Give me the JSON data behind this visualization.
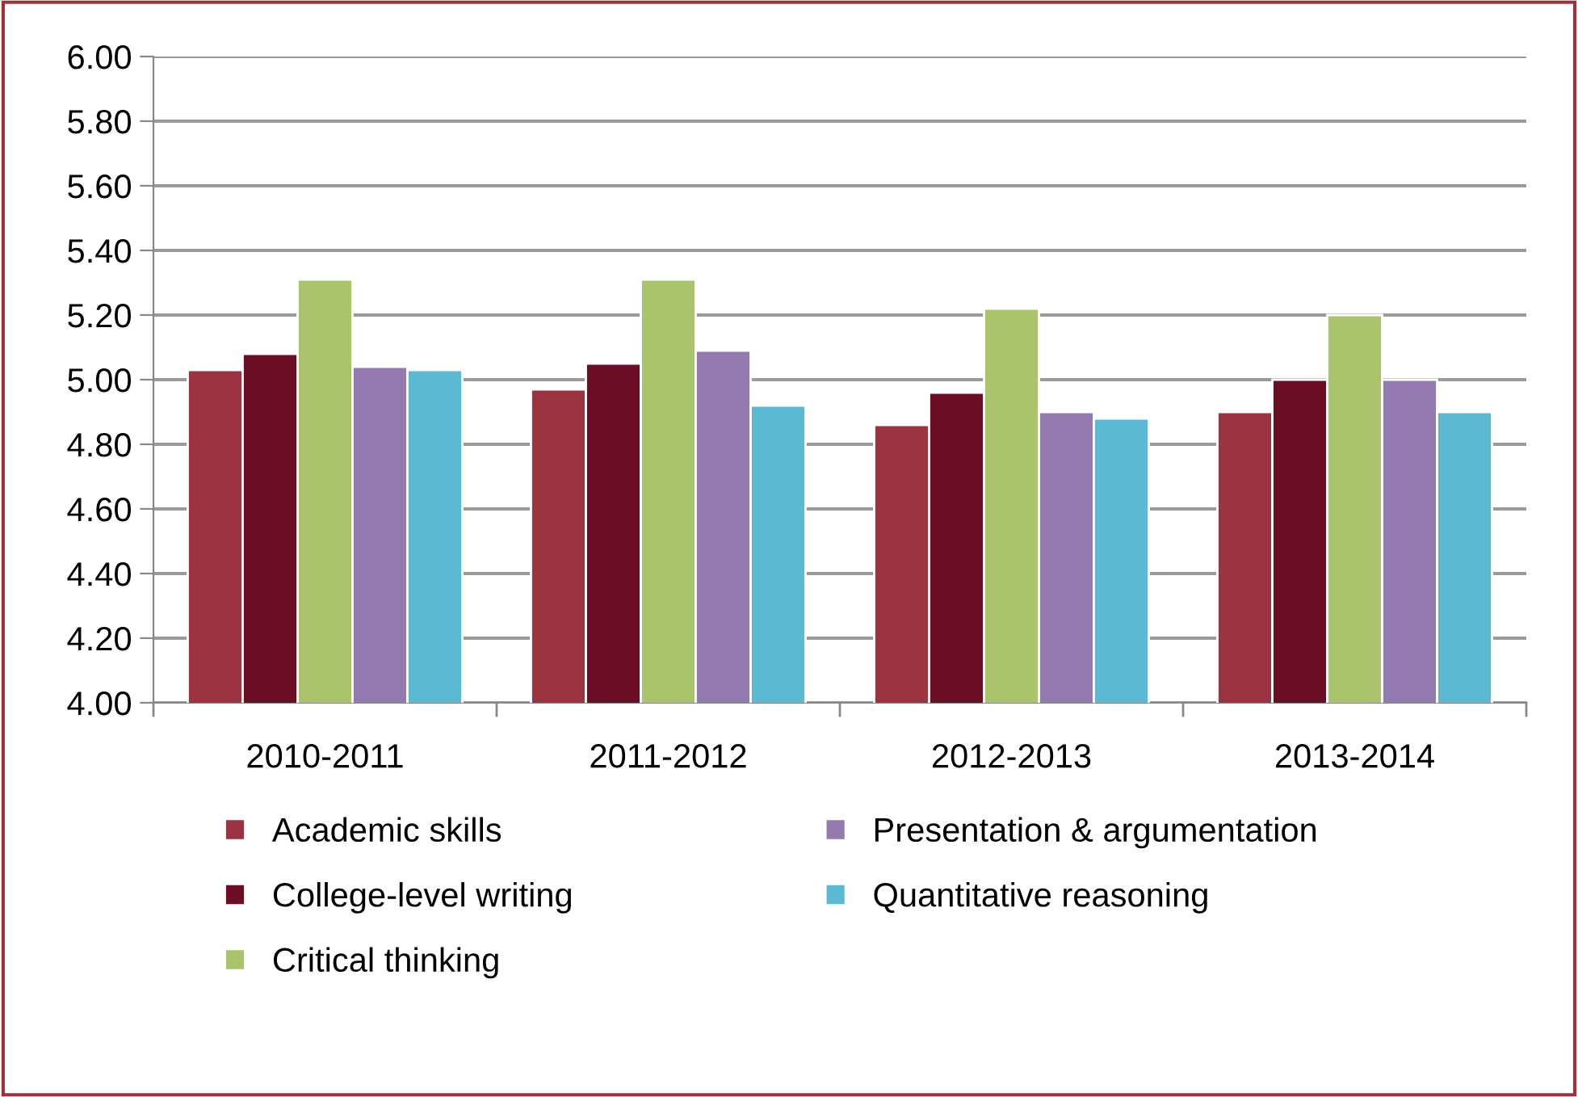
{
  "chart_data": {
    "type": "bar",
    "categories": [
      "2010-2011",
      "2011-2012",
      "2012-2013",
      "2013-2014"
    ],
    "series": [
      {
        "name": "Academic skills",
        "color": "#9b3340",
        "values": [
          5.03,
          4.97,
          4.86,
          4.9
        ]
      },
      {
        "name": "College-level writing",
        "color": "#6b0d24",
        "values": [
          5.08,
          5.05,
          4.96,
          5.0
        ]
      },
      {
        "name": "Critical thinking",
        "color": "#aac46b",
        "values": [
          5.31,
          5.31,
          5.22,
          5.2
        ]
      },
      {
        "name": "Presentation & argumentation",
        "color": "#937bb1",
        "values": [
          5.04,
          5.09,
          4.9,
          5.0
        ]
      },
      {
        "name": "Quantitative reasoning",
        "color": "#5bbad2",
        "values": [
          5.03,
          4.92,
          4.88,
          4.9
        ]
      }
    ],
    "ylim": [
      4.0,
      6.0
    ],
    "yticks": [
      {
        "value": 4.0,
        "label": "4.00"
      },
      {
        "value": 4.2,
        "label": "4.20"
      },
      {
        "value": 4.4,
        "label": "4.40"
      },
      {
        "value": 4.6,
        "label": "4.60"
      },
      {
        "value": 4.8,
        "label": "4.80"
      },
      {
        "value": 5.0,
        "label": "5.00"
      },
      {
        "value": 5.2,
        "label": "5.20"
      },
      {
        "value": 5.4,
        "label": "5.40"
      },
      {
        "value": 5.6,
        "label": "5.60"
      },
      {
        "value": 5.8,
        "label": "5.80"
      },
      {
        "value": 6.0,
        "label": "6.00"
      }
    ],
    "grid": "y",
    "legend": "bottom"
  }
}
